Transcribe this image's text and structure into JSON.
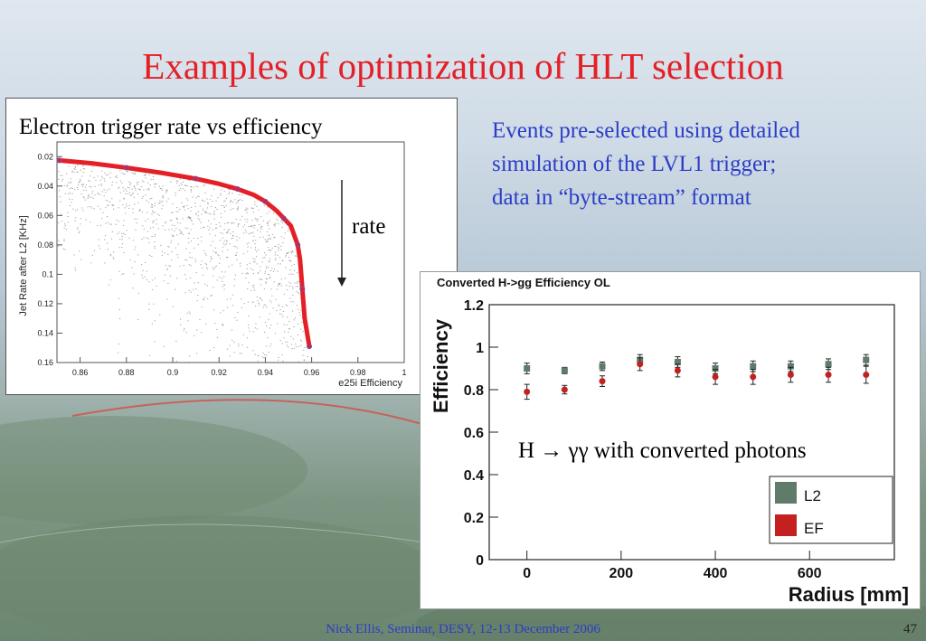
{
  "slide": {
    "title": "Examples of optimization of HLT selection",
    "bullet_lines": [
      "Events pre-selected using detailed",
      "simulation of the LVL1 trigger;",
      "data in “byte-stream” format"
    ],
    "footer": "Nick Ellis, Seminar, DESY, 12-13 December 2006",
    "page_number": "47",
    "colors": {
      "title": "#e41f26",
      "bullet": "#2c3dc7"
    }
  },
  "left_panel": {
    "caption": "Electron trigger rate vs efficiency",
    "rate_label": "rate"
  },
  "right_panel": {
    "annotation": "H → γγ with converted photons"
  },
  "chart_data": [
    {
      "type": "line",
      "title": "",
      "xlabel": "e25i Efficiency",
      "ylabel": "Jet Rate after L2 [KHz]",
      "xlim": [
        0.85,
        1.0
      ],
      "ylim": [
        0.16,
        0.01
      ],
      "x_ticks": [
        "0.86",
        "0.88",
        "0.9",
        "0.92",
        "0.94",
        "0.96",
        "0.98",
        "1"
      ],
      "y_ticks": [
        "0.02",
        "0.04",
        "0.06",
        "0.08",
        "0.1",
        "0.12",
        "0.14",
        "0.16"
      ],
      "series": [
        {
          "color": "#e41f26",
          "x": [
            0.851,
            0.865,
            0.88,
            0.895,
            0.91,
            0.92,
            0.928,
            0.935,
            0.94,
            0.945,
            0.948,
            0.951,
            0.954,
            0.955,
            0.956,
            0.957,
            0.959
          ],
          "y": [
            0.0225,
            0.0245,
            0.0275,
            0.031,
            0.035,
            0.0385,
            0.042,
            0.046,
            0.0505,
            0.057,
            0.062,
            0.067,
            0.08,
            0.09,
            0.11,
            0.13,
            0.149
          ]
        }
      ]
    },
    {
      "type": "scatter",
      "title": "Converted H->gg Efficiency OL",
      "xlabel": "Radius [mm]",
      "ylabel": "Efficiency",
      "xlim": [
        -80,
        780
      ],
      "ylim": [
        0,
        1.2
      ],
      "x_ticks": [
        "0",
        "200",
        "400",
        "600"
      ],
      "y_ticks": [
        "0",
        "0.2",
        "0.4",
        "0.6",
        "0.8",
        "1",
        "1.2"
      ],
      "legend_position": "bottom-right",
      "series": [
        {
          "name": "L2",
          "color": "#5f7b6a",
          "x": [
            0,
            80,
            160,
            240,
            320,
            400,
            480,
            560,
            640,
            720
          ],
          "y": [
            0.9,
            0.89,
            0.91,
            0.94,
            0.93,
            0.9,
            0.91,
            0.91,
            0.92,
            0.94
          ],
          "err": [
            0.025,
            0.015,
            0.02,
            0.025,
            0.025,
            0.025,
            0.025,
            0.025,
            0.025,
            0.025
          ]
        },
        {
          "name": "EF",
          "color": "#c42020",
          "x": [
            0,
            80,
            160,
            240,
            320,
            400,
            480,
            560,
            640,
            720
          ],
          "y": [
            0.79,
            0.8,
            0.84,
            0.92,
            0.89,
            0.86,
            0.86,
            0.87,
            0.87,
            0.87
          ],
          "err": [
            0.035,
            0.02,
            0.025,
            0.03,
            0.03,
            0.035,
            0.035,
            0.035,
            0.035,
            0.04
          ]
        }
      ]
    }
  ]
}
